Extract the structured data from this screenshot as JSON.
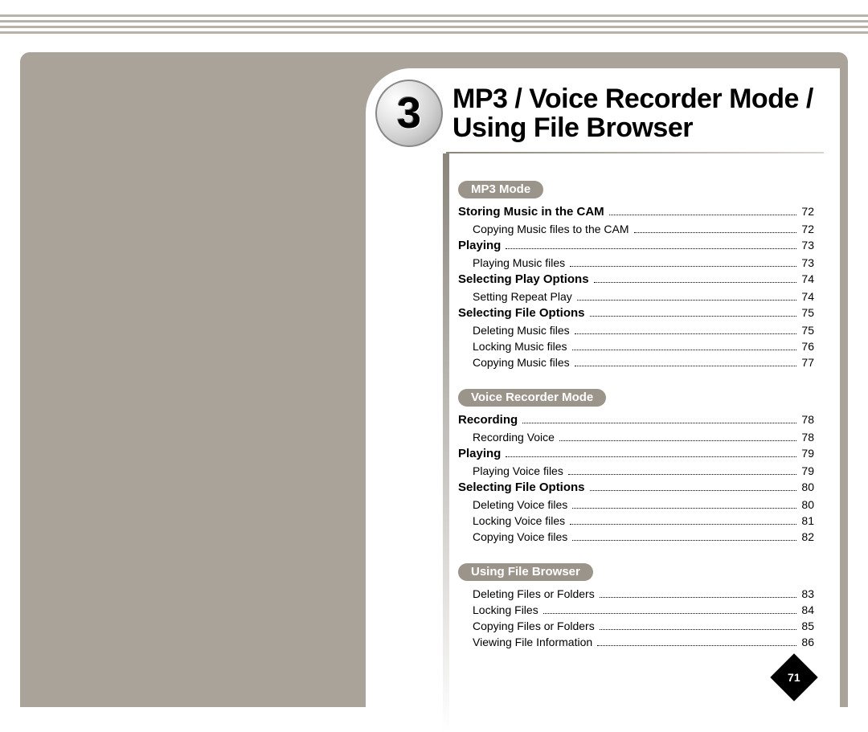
{
  "chapter": {
    "number": "3",
    "title_line1": "MP3 / Voice Recorder Mode /",
    "title_line2": "Using File Browser"
  },
  "page_number": "71",
  "colors": {
    "frame_bg": "#a9a399",
    "bar": "#b8b2a8",
    "pill_bg": "#9b948a"
  },
  "toc": {
    "sections": [
      {
        "header": "MP3 Mode",
        "entries": [
          {
            "label": "Storing Music in the CAM",
            "page": "72",
            "bold": true,
            "indent": 0
          },
          {
            "label": "Copying Music files to the CAM",
            "page": "72",
            "bold": false,
            "indent": 1
          },
          {
            "label": "Playing",
            "page": "73",
            "bold": true,
            "indent": 0
          },
          {
            "label": "Playing Music files",
            "page": "73",
            "bold": false,
            "indent": 1
          },
          {
            "label": "Selecting Play Options",
            "page": "74",
            "bold": true,
            "indent": 0
          },
          {
            "label": "Setting Repeat Play",
            "page": "74",
            "bold": false,
            "indent": 1
          },
          {
            "label": "Selecting File Options",
            "page": "75",
            "bold": true,
            "indent": 0
          },
          {
            "label": "Deleting Music files",
            "page": "75",
            "bold": false,
            "indent": 1
          },
          {
            "label": "Locking Music files",
            "page": "76",
            "bold": false,
            "indent": 1
          },
          {
            "label": "Copying Music files",
            "page": "77",
            "bold": false,
            "indent": 1
          }
        ]
      },
      {
        "header": "Voice Recorder Mode",
        "entries": [
          {
            "label": "Recording",
            "page": "78",
            "bold": true,
            "indent": 0
          },
          {
            "label": "Recording Voice",
            "page": "78",
            "bold": false,
            "indent": 1
          },
          {
            "label": "Playing",
            "page": "79",
            "bold": true,
            "indent": 0
          },
          {
            "label": "Playing Voice files",
            "page": "79",
            "bold": false,
            "indent": 1
          },
          {
            "label": "Selecting File Options",
            "page": "80",
            "bold": true,
            "indent": 0
          },
          {
            "label": "Deleting Voice files",
            "page": "80",
            "bold": false,
            "indent": 1
          },
          {
            "label": "Locking Voice files",
            "page": "81",
            "bold": false,
            "indent": 1
          },
          {
            "label": "Copying Voice files",
            "page": "82",
            "bold": false,
            "indent": 1
          }
        ]
      },
      {
        "header": "Using File Browser",
        "entries": [
          {
            "label": "Deleting Files or Folders",
            "page": "83",
            "bold": false,
            "indent": 1
          },
          {
            "label": "Locking Files",
            "page": "84",
            "bold": false,
            "indent": 1
          },
          {
            "label": "Copying Files or Folders",
            "page": "85",
            "bold": false,
            "indent": 1
          },
          {
            "label": "Viewing File Information",
            "page": "86",
            "bold": false,
            "indent": 1
          }
        ]
      }
    ]
  }
}
